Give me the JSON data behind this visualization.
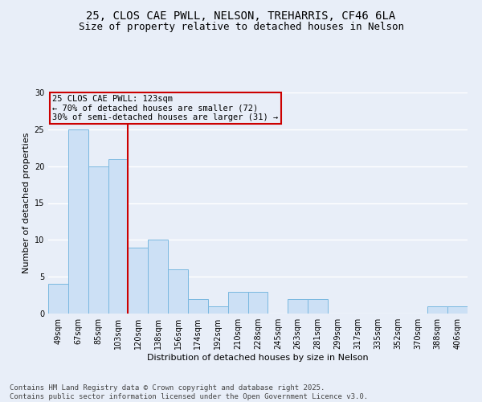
{
  "title_line1": "25, CLOS CAE PWLL, NELSON, TREHARRIS, CF46 6LA",
  "title_line2": "Size of property relative to detached houses in Nelson",
  "xlabel": "Distribution of detached houses by size in Nelson",
  "ylabel": "Number of detached properties",
  "categories": [
    "49sqm",
    "67sqm",
    "85sqm",
    "103sqm",
    "120sqm",
    "138sqm",
    "156sqm",
    "174sqm",
    "192sqm",
    "210sqm",
    "228sqm",
    "245sqm",
    "263sqm",
    "281sqm",
    "299sqm",
    "317sqm",
    "335sqm",
    "352sqm",
    "370sqm",
    "388sqm",
    "406sqm"
  ],
  "values": [
    4,
    25,
    20,
    21,
    9,
    10,
    6,
    2,
    1,
    3,
    3,
    0,
    2,
    2,
    0,
    0,
    0,
    0,
    0,
    1,
    1
  ],
  "bar_color": "#cce0f5",
  "bar_edge_color": "#7ab8e0",
  "vline_x_index": 4,
  "vline_color": "#cc0000",
  "annotation_title": "25 CLOS CAE PWLL: 123sqm",
  "annotation_line2": "← 70% of detached houses are smaller (72)",
  "annotation_line3": "30% of semi-detached houses are larger (31) →",
  "annotation_box_edge_color": "#cc0000",
  "ylim": [
    0,
    30
  ],
  "yticks": [
    0,
    5,
    10,
    15,
    20,
    25,
    30
  ],
  "footer_line1": "Contains HM Land Registry data © Crown copyright and database right 2025.",
  "footer_line2": "Contains public sector information licensed under the Open Government Licence v3.0.",
  "background_color": "#e8eef8",
  "grid_color": "#ffffff",
  "title_fontsize": 10,
  "subtitle_fontsize": 9,
  "axis_label_fontsize": 8,
  "tick_fontsize": 7,
  "footer_fontsize": 6.5,
  "annotation_fontsize": 7.5
}
